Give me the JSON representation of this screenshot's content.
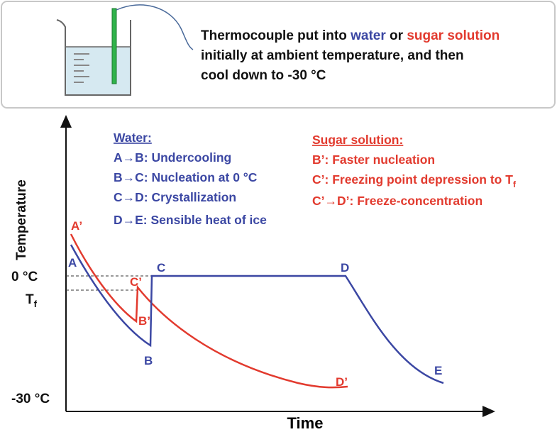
{
  "caption": {
    "lines": [
      [
        "Thermocouple put into ",
        "water",
        " or ",
        "sugar solution"
      ],
      [
        "initially at ambient temperature, and then"
      ],
      [
        "cool down to -30 °C"
      ]
    ]
  },
  "axes": {
    "y_title": "Temperature",
    "x_title": "Time",
    "zero": "0 °C",
    "tf": "T",
    "tf_sub": "f",
    "min": "-30 °C"
  },
  "water_legend": {
    "title": "Water:",
    "items": [
      "A→B: Undercooling",
      "B→C: Nucleation at 0 °C",
      "C→D: Crystallization",
      "D→E: Sensible heat of ice"
    ]
  },
  "sugar_legend": {
    "title": "Sugar solution:",
    "items": [
      "B’: Faster nucleation",
      "C’: Freezing point depression to T",
      "C’→D’: Freeze-concentration"
    ],
    "sub": "f"
  },
  "points": {
    "a_prime": "A’",
    "a": "A",
    "c_prime": "C’",
    "c": "C",
    "b_prime": "B’",
    "b": "B",
    "d": "D",
    "d_prime": "D’",
    "e": "E"
  }
}
